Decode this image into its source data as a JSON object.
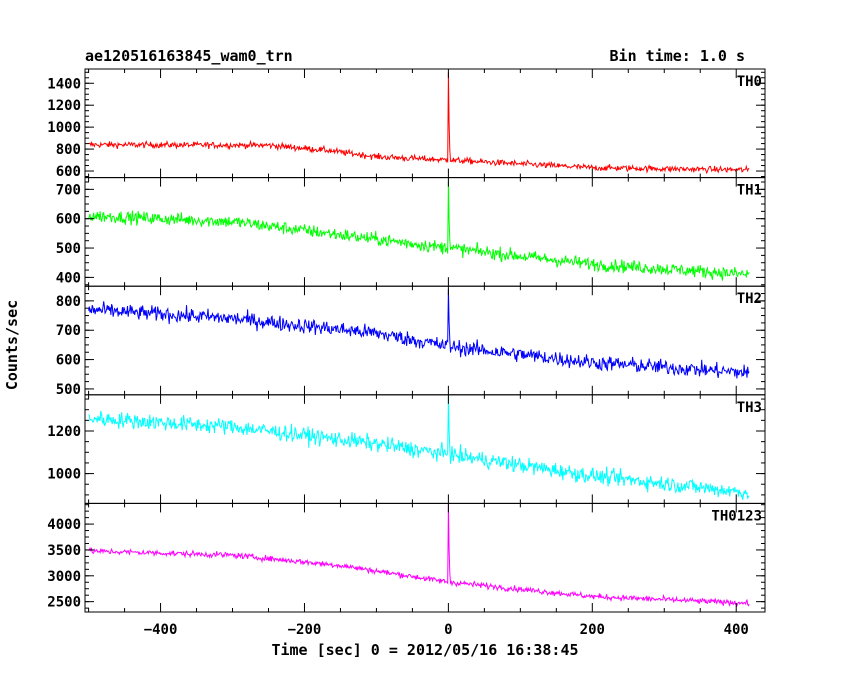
{
  "header": {
    "title": "ae120516163845_wam0_trn",
    "bin_time": "Bin time: 1.0 s"
  },
  "axes": {
    "xlabel": "Time [sec] 0 = 2012/05/16 16:38:45",
    "ylabel": "Counts/sec"
  },
  "chart_data": {
    "type": "line",
    "x_range": [
      -500,
      418
    ],
    "xlim": [
      -505,
      440
    ],
    "x_ticks": [
      -400,
      -200,
      0,
      200,
      400
    ],
    "x_tick_labels": [
      "−400",
      "−200",
      "0",
      "200",
      "400"
    ],
    "grid": false,
    "panels": [
      {
        "name": "TH0",
        "color": "#ff0000",
        "ylim": [
          540,
          1530
        ],
        "y_ticks": [
          600,
          800,
          1000,
          1200,
          1400
        ],
        "y_tick_labels": [
          "600",
          "800",
          "1000",
          "1200",
          "1400"
        ],
        "trend": [
          [
            -500,
            840
          ],
          [
            -250,
            835
          ],
          [
            -170,
            790
          ],
          [
            -100,
            730
          ],
          [
            0,
            700
          ],
          [
            200,
            630
          ],
          [
            418,
            610
          ]
        ],
        "noise": 28,
        "peak": 1500
      },
      {
        "name": "TH1",
        "color": "#00ff00",
        "ylim": [
          370,
          740
        ],
        "y_ticks": [
          400,
          500,
          600,
          700
        ],
        "y_tick_labels": [
          "400",
          "500",
          "600",
          "700"
        ],
        "trend": [
          [
            -500,
            610
          ],
          [
            -300,
            590
          ],
          [
            -150,
            545
          ],
          [
            0,
            500
          ],
          [
            200,
            445
          ],
          [
            418,
            410
          ]
        ],
        "noise": 22,
        "peak": 730
      },
      {
        "name": "TH2",
        "color": "#0000ff",
        "ylim": [
          480,
          850
        ],
        "y_ticks": [
          500,
          600,
          700,
          800
        ],
        "y_tick_labels": [
          "500",
          "600",
          "700",
          "800"
        ],
        "trend": [
          [
            -500,
            770
          ],
          [
            -300,
            740
          ],
          [
            -100,
            690
          ],
          [
            0,
            645
          ],
          [
            200,
            590
          ],
          [
            418,
            555
          ]
        ],
        "noise": 26,
        "peak": 840
      },
      {
        "name": "TH3",
        "color": "#00ffff",
        "ylim": [
          860,
          1370
        ],
        "y_ticks": [
          1000,
          1200
        ],
        "y_tick_labels": [
          "1000",
          "1200"
        ],
        "trend": [
          [
            -500,
            1260
          ],
          [
            -300,
            1220
          ],
          [
            -100,
            1140
          ],
          [
            0,
            1090
          ],
          [
            200,
            990
          ],
          [
            418,
            910
          ]
        ],
        "noise": 38,
        "peak": 1360
      },
      {
        "name": "TH0123",
        "color": "#ff00ff",
        "ylim": [
          2300,
          4400
        ],
        "y_ticks": [
          2500,
          3000,
          3500,
          4000
        ],
        "y_tick_labels": [
          "2500",
          "3000",
          "3500",
          "4000"
        ],
        "trend": [
          [
            -500,
            3480
          ],
          [
            -300,
            3400
          ],
          [
            -150,
            3200
          ],
          [
            0,
            2880
          ],
          [
            200,
            2600
          ],
          [
            418,
            2470
          ]
        ],
        "noise": 55,
        "peak": 4380
      }
    ]
  }
}
